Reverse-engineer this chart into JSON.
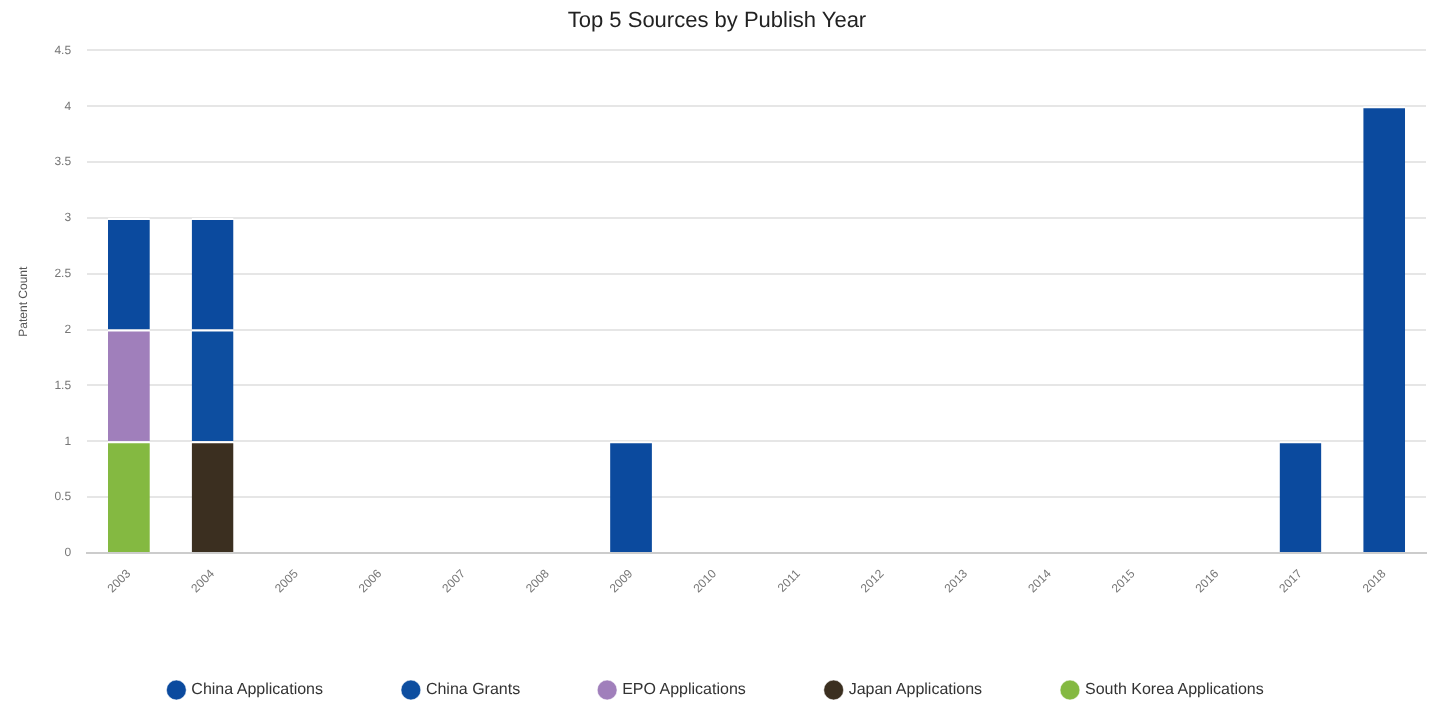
{
  "chart_data": {
    "type": "bar",
    "title": "Top 5 Sources by Publish Year",
    "ylabel": "Patent Count",
    "stacked": true,
    "categories": [
      "2003",
      "2004",
      "2005",
      "2006",
      "2007",
      "2008",
      "2009",
      "2010",
      "2011",
      "2012",
      "2013",
      "2014",
      "2015",
      "2016",
      "2017",
      "2018"
    ],
    "series": [
      {
        "name": "South Korea Applications",
        "color": "#84b941",
        "values": [
          1,
          0,
          0,
          0,
          0,
          0,
          0,
          0,
          0,
          0,
          0,
          0,
          0,
          0,
          0,
          0
        ]
      },
      {
        "name": "Japan Applications",
        "color": "#3b2f20",
        "values": [
          0,
          1,
          0,
          0,
          0,
          0,
          0,
          0,
          0,
          0,
          0,
          0,
          0,
          0,
          0,
          0
        ]
      },
      {
        "name": "EPO Applications",
        "color": "#a07fbb",
        "values": [
          1,
          0,
          0,
          0,
          0,
          0,
          0,
          0,
          0,
          0,
          0,
          0,
          0,
          0,
          0,
          0
        ]
      },
      {
        "name": "China Grants",
        "color": "#0d4ea0",
        "values": [
          0,
          1,
          0,
          0,
          0,
          0,
          0,
          0,
          0,
          0,
          0,
          0,
          0,
          0,
          0,
          0
        ]
      },
      {
        "name": "China Applications",
        "color": "#0b4a9e",
        "values": [
          1,
          1,
          0,
          0,
          0,
          0,
          1,
          0,
          0,
          0,
          0,
          0,
          0,
          0,
          1,
          4
        ]
      }
    ],
    "ylim": [
      0,
      4.5
    ],
    "yticks": [
      0,
      0.5,
      1,
      1.5,
      2,
      2.5,
      3,
      3.5,
      4,
      4.5
    ],
    "grid": "y",
    "legend": "bottom"
  }
}
